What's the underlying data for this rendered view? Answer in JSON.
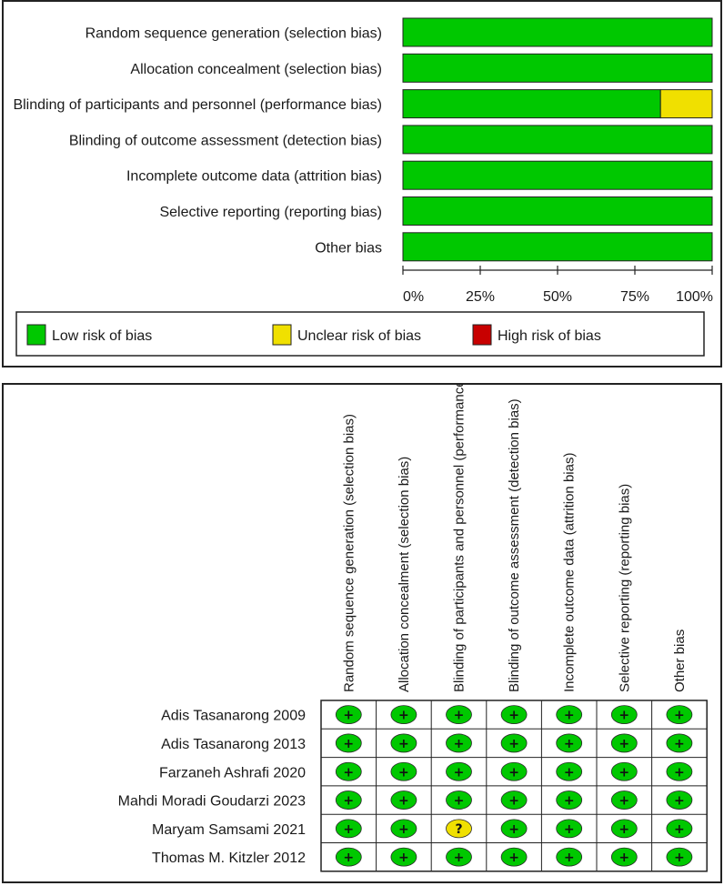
{
  "chart_data": [
    {
      "type": "bar",
      "orientation": "horizontal-stacked-percent",
      "categories": [
        "Random sequence generation (selection bias)",
        "Allocation concealment (selection bias)",
        "Blinding of participants and personnel (performance bias)",
        "Blinding of outcome assessment (detection bias)",
        "Incomplete outcome data (attrition bias)",
        "Selective reporting (reporting bias)",
        "Other bias"
      ],
      "series": [
        {
          "name": "Low risk of bias",
          "color": "#00c800",
          "values": [
            100,
            100,
            83.3,
            100,
            100,
            100,
            100
          ]
        },
        {
          "name": "Unclear risk of bias",
          "color": "#f0e000",
          "values": [
            0,
            0,
            16.7,
            0,
            0,
            0,
            0
          ]
        },
        {
          "name": "High risk of bias",
          "color": "#c80000",
          "values": [
            0,
            0,
            0,
            0,
            0,
            0,
            0
          ]
        }
      ],
      "xticks": [
        "0%",
        "25%",
        "50%",
        "75%",
        "100%"
      ],
      "xlim": [
        0,
        100
      ],
      "legend_position": "bottom",
      "grid": false
    },
    {
      "type": "table",
      "columns": [
        "Random sequence generation (selection bias)",
        "Allocation concealment (selection bias)",
        "Blinding of participants and personnel (performance bias)",
        "Blinding of outcome assessment (detection bias)",
        "Incomplete outcome data (attrition bias)",
        "Selective reporting (reporting bias)",
        "Other bias"
      ],
      "rows": [
        {
          "study": "Adis Tasanarong 2009",
          "ratings": [
            "low",
            "low",
            "low",
            "low",
            "low",
            "low",
            "low"
          ]
        },
        {
          "study": "Adis Tasanarong 2013",
          "ratings": [
            "low",
            "low",
            "low",
            "low",
            "low",
            "low",
            "low"
          ]
        },
        {
          "study": "Farzaneh Ashrafi 2020",
          "ratings": [
            "low",
            "low",
            "low",
            "low",
            "low",
            "low",
            "low"
          ]
        },
        {
          "study": "Mahdi Moradi Goudarzi 2023",
          "ratings": [
            "low",
            "low",
            "low",
            "low",
            "low",
            "low",
            "low"
          ]
        },
        {
          "study": "Maryam Samsami 2021",
          "ratings": [
            "low",
            "low",
            "unclear",
            "low",
            "low",
            "low",
            "low"
          ]
        },
        {
          "study": "Thomas M. Kitzler 2012",
          "ratings": [
            "low",
            "low",
            "low",
            "low",
            "low",
            "low",
            "low"
          ]
        }
      ],
      "symbols": {
        "low": "+",
        "unclear": "?",
        "high": "-"
      },
      "colors": {
        "low": "#00c800",
        "unclear": "#f0e000",
        "high": "#c80000"
      }
    }
  ]
}
